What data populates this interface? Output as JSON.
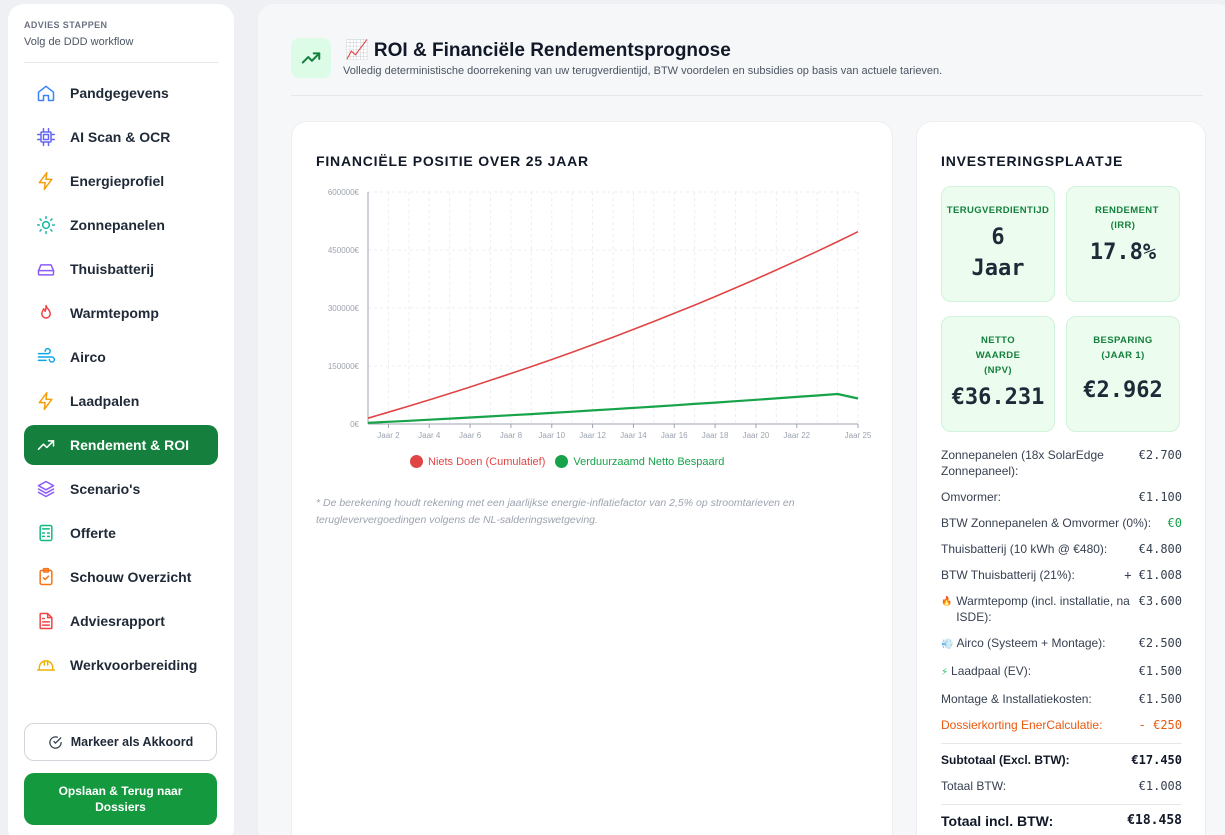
{
  "sidebar": {
    "heading": "ADVIES STAPPEN",
    "subheading": "Volg de DDD workflow",
    "items": [
      {
        "label": "Pandgegevens",
        "icon": "home-icon",
        "color": "#3b82f6"
      },
      {
        "label": "AI Scan & OCR",
        "icon": "cpu-icon",
        "color": "#6366f1"
      },
      {
        "label": "Energieprofiel",
        "icon": "bolt-icon",
        "color": "#f59e0b"
      },
      {
        "label": "Zonnepanelen",
        "icon": "sun-icon",
        "color": "#14b8a6"
      },
      {
        "label": "Thuisbatterij",
        "icon": "battery-icon",
        "color": "#8b5cf6"
      },
      {
        "label": "Warmtepomp",
        "icon": "flame-icon",
        "color": "#ef4444"
      },
      {
        "label": "Airco",
        "icon": "wind-icon",
        "color": "#0ea5e9"
      },
      {
        "label": "Laadpalen",
        "icon": "bolt-icon",
        "color": "#f59e0b"
      },
      {
        "label": "Rendement & ROI",
        "icon": "trending-up-icon",
        "color": "#ffffff"
      },
      {
        "label": "Scenario's",
        "icon": "layers-icon",
        "color": "#8b5cf6"
      },
      {
        "label": "Offerte",
        "icon": "calculator-icon",
        "color": "#10b981"
      },
      {
        "label": "Schouw Overzicht",
        "icon": "clipboard-check-icon",
        "color": "#f97316"
      },
      {
        "label": "Adviesrapport",
        "icon": "file-text-icon",
        "color": "#ef4444"
      },
      {
        "label": "Werkvoorbereiding",
        "icon": "hard-hat-icon",
        "color": "#eab308"
      }
    ],
    "active_index": 8,
    "approve_label": "Markeer als Akkoord",
    "save_label": "Opslaan & Terug naar Dossiers"
  },
  "header": {
    "title": "📈 ROI & Financiële Rendementsprognose",
    "subtitle": "Volledig deterministische doorrekening van uw terugverdientijd, BTW voordelen en subsidies op basis van actuele tarieven."
  },
  "chart_card": {
    "title": "FINANCIËLE POSITIE OVER 25 JAAR",
    "footnote": "* De berekening houdt rekening met een jaarlijkse energie-inflatiefactor van 2,5% op stroomtarieven en terugleververgoedingen volgens de NL-salderingswetgeving."
  },
  "chart_data": {
    "type": "line",
    "x": [
      1,
      2,
      3,
      4,
      5,
      6,
      7,
      8,
      9,
      10,
      11,
      12,
      13,
      14,
      15,
      16,
      17,
      18,
      19,
      20,
      21,
      22,
      23,
      24,
      25
    ],
    "tick_labels": [
      "Jaar 2",
      "Jaar 4",
      "Jaar 6",
      "Jaar 8",
      "Jaar 10",
      "Jaar 12",
      "Jaar 14",
      "Jaar 16",
      "Jaar 18",
      "Jaar 20",
      "Jaar 22",
      "Jaar 25"
    ],
    "tick_years": [
      2,
      4,
      6,
      8,
      10,
      12,
      14,
      16,
      18,
      20,
      22,
      25
    ],
    "y_ticks": [
      "0€",
      "150000€",
      "300000€",
      "450000€",
      "600000€"
    ],
    "y_tick_values": [
      0,
      150000,
      300000,
      450000,
      600000
    ],
    "ylim": [
      0,
      600000
    ],
    "grid": true,
    "legend_position": "bottom",
    "series": [
      {
        "name": "Niets Doen (Cumulatief)",
        "color": "#e04545",
        "values": [
          15000,
          30500,
          46300,
          62400,
          78900,
          95700,
          112900,
          130500,
          148500,
          166900,
          185700,
          205000,
          224600,
          244700,
          265200,
          286200,
          307600,
          329500,
          351900,
          374800,
          398200,
          422200,
          446700,
          471700,
          497300
        ]
      },
      {
        "name": "Verduurzaamd Netto Bespaard",
        "color": "#16a34a",
        "values": [
          3000,
          5700,
          8400,
          11100,
          13900,
          16800,
          19700,
          22700,
          25700,
          28800,
          31900,
          35100,
          38300,
          41600,
          45000,
          48400,
          51900,
          55400,
          59000,
          62600,
          66300,
          70000,
          73800,
          77700,
          66000
        ]
      }
    ]
  },
  "investment": {
    "title": "INVESTERINGSPLAATJE",
    "kpis": [
      {
        "label": "TERUGVERDIENTIJD",
        "value": "6 Jaar"
      },
      {
        "label": "RENDEMENT (IRR)",
        "value": "17.8%"
      },
      {
        "label": "NETTO WAARDE (NPV)",
        "value": "€36.231"
      },
      {
        "label": "BESPARING (JAAR 1)",
        "value": "€2.962"
      }
    ],
    "rows": [
      {
        "label": "Zonnepanelen (18x SolarEdge Zonnepaneel):",
        "value": "€2.700"
      },
      {
        "label": "Omvormer:",
        "value": "€1.100"
      },
      {
        "label": "BTW Zonnepanelen & Omvormer (0%):",
        "value": "€0"
      },
      {
        "label": "Thuisbatterij (10 kWh @ €480):",
        "value": "€4.800"
      },
      {
        "label": "BTW Thuisbatterij (21%):",
        "value": "+ €1.008"
      },
      {
        "label": "Warmtepomp (incl. installatie, na ISDE):",
        "value": "€3.600",
        "icon": "🔥"
      },
      {
        "label": "Airco (Systeem + Montage):",
        "value": "€2.500",
        "icon": "💨"
      },
      {
        "label": "Laadpaal (EV):",
        "value": "€1.500",
        "icon": "⚡"
      },
      {
        "label": "Montage & Installatiekosten:",
        "value": "€1.500"
      },
      {
        "label": "Dossierkorting EnerCalculatie:",
        "value": "- €250"
      }
    ],
    "subtotal_label": "Subtotaal (Excl. BTW):",
    "subtotal_value": "€17.450",
    "btw_label": "Totaal BTW:",
    "btw_value": "€1.008",
    "total_label": "Totaal incl. BTW:",
    "total_value": "€18.458"
  }
}
